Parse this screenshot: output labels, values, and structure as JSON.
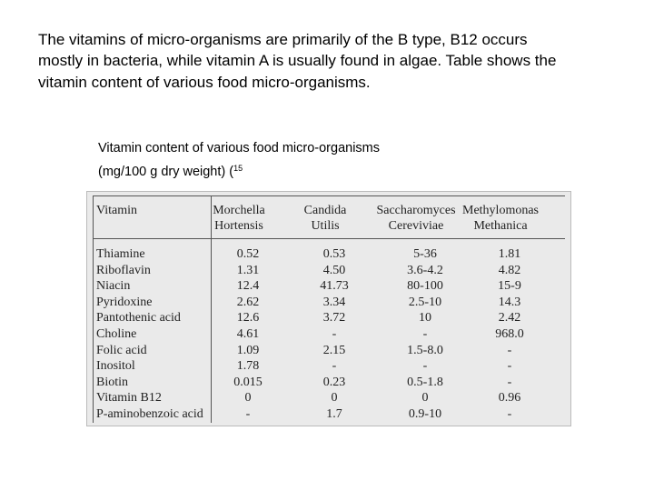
{
  "paragraph": {
    "lines": [
      "The vitamins of micro-organisms are primarily of the B type, B12 occurs",
      "mostly in bacteria, while vitamin A is usually found in algae. Table  shows the",
      "vitamin content of various food micro-organisms."
    ]
  },
  "caption": {
    "lines": [
      "Vitamin content of various food micro-organisms",
      "(mg/100 g dry weight) ("
    ],
    "superscript": "15"
  },
  "table": {
    "header": [
      [
        "Vitamin"
      ],
      [
        "Morchella",
        "Hortensis"
      ],
      [
        "Candida",
        "Utilis"
      ],
      [
        "Saccharomyces",
        "Cereviviae"
      ],
      [
        "Methylomonas",
        "Methanica"
      ]
    ],
    "rows": [
      [
        "Thiamine",
        "0.52",
        "0.53",
        "5-36",
        "1.81"
      ],
      [
        "Riboflavin",
        "1.31",
        "4.50",
        "3.6-4.2",
        "4.82"
      ],
      [
        "Niacin",
        "12.4",
        "41.73",
        "80-100",
        "15-9"
      ],
      [
        "Pyridoxine",
        "2.62",
        "3.34",
        "2.5-10",
        "14.3"
      ],
      [
        "Pantothenic acid",
        "12.6",
        "3.72",
        "10",
        "2.42"
      ],
      [
        "Choline",
        "4.61",
        "-",
        "-",
        "968.0"
      ],
      [
        "Folic acid",
        "1.09",
        "2.15",
        "1.5-8.0",
        "-"
      ],
      [
        "Inositol",
        "1.78",
        "-",
        "-",
        "-"
      ],
      [
        "Biotin",
        "0.015",
        "0.23",
        "0.5-1.8",
        "-"
      ],
      [
        "Vitamin B12",
        "0",
        "0",
        "0",
        "0.96"
      ],
      [
        "P-aminobenzoic acid",
        "-",
        "1.7",
        "0.9-10",
        "-"
      ]
    ]
  }
}
